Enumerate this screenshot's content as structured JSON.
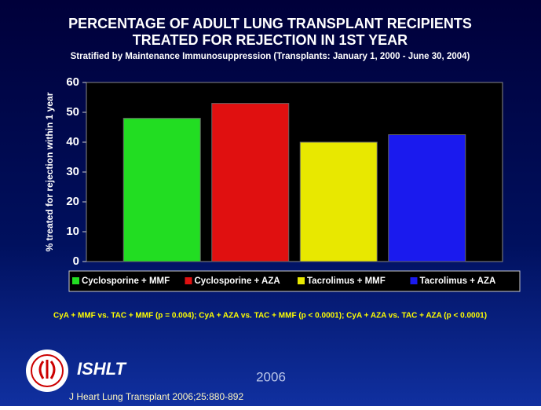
{
  "chart_data": {
    "type": "bar",
    "title": [
      "PERCENTAGE OF ADULT LUNG TRANSPLANT RECIPIENTS",
      "TREATED FOR REJECTION IN 1ST YEAR"
    ],
    "subtitle": "Stratified by Maintenance Immunosuppression  (Transplants: January 1, 2000 - June 30, 2004)",
    "y_label": "% treated for rejection within 1 year",
    "ylim": [
      0,
      60
    ],
    "yticks": [
      0,
      10,
      20,
      30,
      40,
      50,
      60
    ],
    "series": [
      {
        "name": "Cyclosporine + MMF",
        "color": "#22dd22",
        "values": [
          48
        ]
      },
      {
        "name": "Cyclosporine + AZA",
        "color": "#e01010",
        "values": [
          53
        ]
      },
      {
        "name": "Tacrolimus + MMF",
        "color": "#e8e800",
        "values": [
          40
        ]
      },
      {
        "name": "Tacrolimus + AZA",
        "color": "#1a1aee",
        "values": [
          42.5
        ]
      }
    ],
    "note": "CyA + MMF vs. TAC + MMF (p = 0.004); CyA + AZA vs. TAC + MMF (p < 0.0001); CyA + AZA vs. TAC + AZA (p < 0.0001)"
  },
  "footer": {
    "logo_text": "ISHLT",
    "year": "2006",
    "citation": "J Heart Lung Transplant 2006;25:880-892"
  }
}
